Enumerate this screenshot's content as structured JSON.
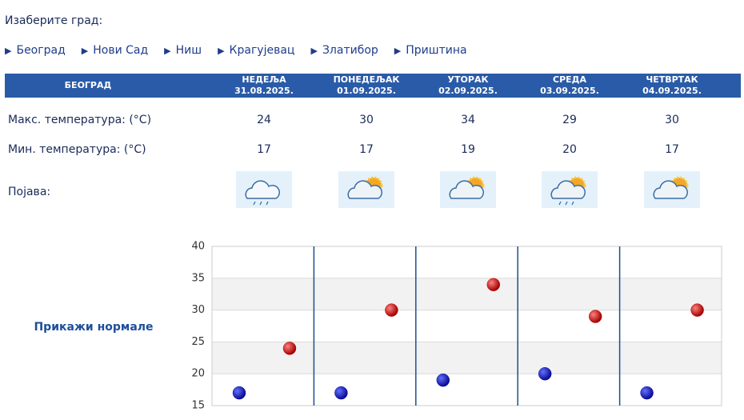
{
  "prompt": "Изаберите град:",
  "cities": [
    "Београд",
    "Нови Сад",
    "Ниш",
    "Крагујевац",
    "Златибор",
    "Приштина"
  ],
  "table": {
    "city": "БЕОГРАД",
    "phenomenon_label": "Појава:",
    "days": [
      {
        "name": "НЕДЕЉА",
        "date": "31.08.2025."
      },
      {
        "name": "ПОНЕДЕЉАК",
        "date": "01.09.2025."
      },
      {
        "name": "УТОРАК",
        "date": "02.09.2025."
      },
      {
        "name": "СРЕДА",
        "date": "03.09.2025."
      },
      {
        "name": "ЧЕТВРТАК",
        "date": "04.09.2025."
      }
    ]
  },
  "normals_link": "Прикажи нормале",
  "chart_data": {
    "type": "scatter",
    "series": [
      {
        "name": "Макс. температура: (°C)",
        "color": "#c40000",
        "values": [
          24,
          30,
          34,
          29,
          30
        ]
      },
      {
        "name": "Мин. температура: (°C)",
        "color": "#1010a8",
        "values": [
          17,
          17,
          19,
          20,
          17
        ]
      }
    ],
    "ylim": [
      15,
      40
    ],
    "yticks": [
      15,
      20,
      25,
      30,
      35,
      40
    ],
    "grid": true
  }
}
